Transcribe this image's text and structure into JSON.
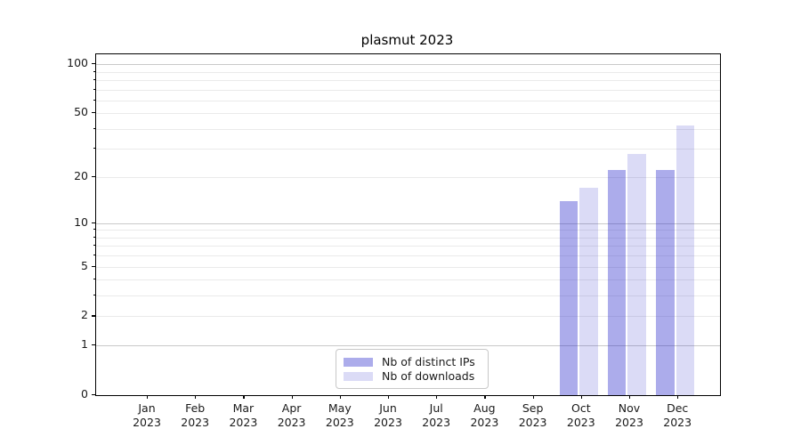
{
  "title": "plasmut 2023",
  "chart_data": {
    "type": "bar",
    "title": "plasmut 2023",
    "categories": [
      "Jan",
      "Feb",
      "Mar",
      "Apr",
      "May",
      "Jun",
      "Jul",
      "Aug",
      "Sep",
      "Oct",
      "Nov",
      "Dec"
    ],
    "year_label": "2023",
    "series": [
      {
        "name": "Nb of distinct IPs",
        "color": "#abaff2",
        "fill": "rgba(30,30,200,0.37)",
        "values": [
          0,
          0,
          0,
          0,
          0,
          0,
          0,
          0,
          0,
          14,
          22,
          22
        ]
      },
      {
        "name": "Nb of downloads",
        "color": "#dcdcf9",
        "fill": "rgba(30,30,200,0.16)",
        "values": [
          0,
          0,
          0,
          0,
          0,
          0,
          0,
          0,
          0,
          17,
          28,
          42
        ]
      }
    ],
    "yscale": "log1p",
    "ylim": [
      0,
      115
    ],
    "yticks_labeled": [
      0,
      1,
      2,
      5,
      10,
      20,
      50,
      100
    ],
    "grid_major": [
      1,
      10,
      100
    ],
    "grid_minor": [
      2,
      3,
      4,
      5,
      6,
      7,
      8,
      9,
      20,
      30,
      40,
      50,
      60,
      70,
      80,
      90
    ],
    "legend_position": "lower center",
    "grid_color_major": "#c9c9c9",
    "grid_color_minor": "#eaeaea",
    "axis_color": "#000000"
  }
}
